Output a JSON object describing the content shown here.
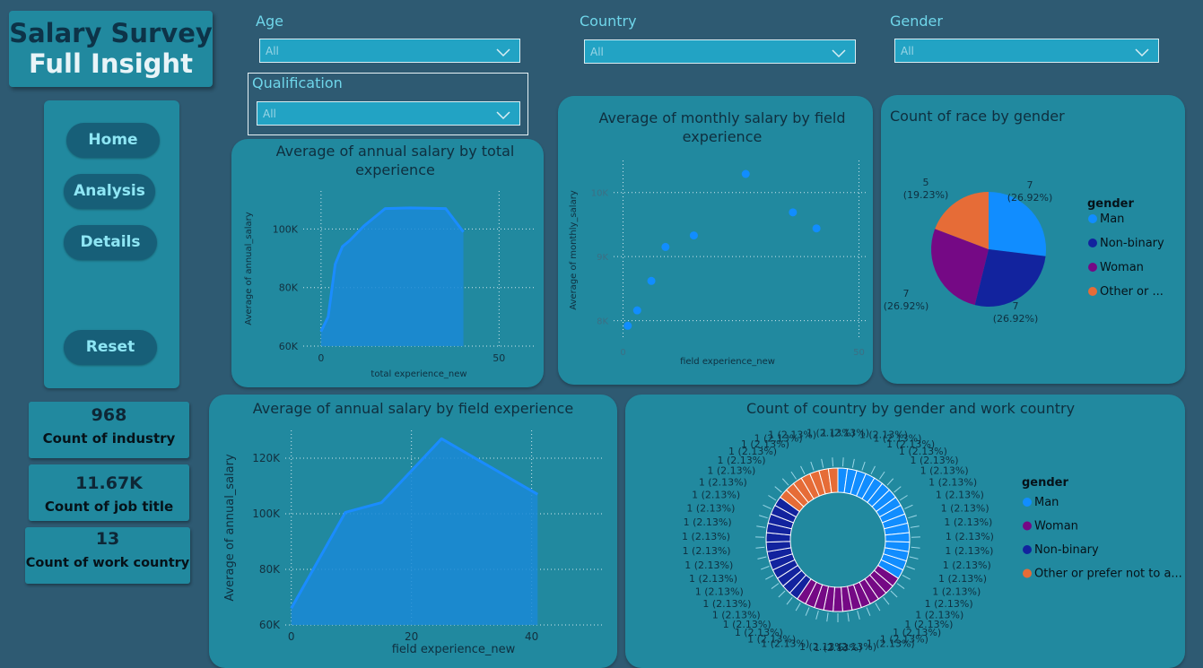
{
  "header": {
    "title_line1": "Salary Survey",
    "title_line2": "Full Insight"
  },
  "nav": {
    "home": "Home",
    "analysis": "Analysis",
    "details": "Details",
    "reset": "Reset"
  },
  "filters": {
    "age": {
      "label": "Age",
      "value": "All"
    },
    "country": {
      "label": "Country",
      "value": "All"
    },
    "gender": {
      "label": "Gender",
      "value": "All"
    },
    "qualification": {
      "label": "Qualification",
      "value": "All"
    }
  },
  "kpis": [
    {
      "value": "968",
      "label": "Count of industry"
    },
    {
      "value": "11.67K",
      "label": "Count of job title"
    },
    {
      "value": "13",
      "label": "Count of work country"
    }
  ],
  "colors": {
    "man": "#118dff",
    "non_binary": "#12239e",
    "woman": "#750985",
    "other": "#e66c37",
    "area": "#1a8ad6",
    "line": "#1a8cff",
    "card": "#21899f",
    "bg": "#2e5a72"
  },
  "chart_data": [
    {
      "id": "annual-by-total",
      "type": "area",
      "title": "Average of annual salary by total experience",
      "xlabel": "total experience_new",
      "ylabel": "Average of annual_salary",
      "x_ticks": [
        "0",
        "50"
      ],
      "y_ticks": [
        "60K",
        "80K",
        "100K"
      ],
      "xlim": [
        -5,
        60
      ],
      "ylim": [
        60000,
        113000
      ],
      "x": [
        0,
        2,
        4,
        6,
        8,
        12,
        18,
        25,
        35,
        40
      ],
      "y": [
        65000,
        70000,
        88000,
        94000,
        96000,
        101000,
        107000,
        107200,
        107000,
        99000
      ]
    },
    {
      "id": "monthly-by-field",
      "type": "scatter",
      "title": "Average of monthly salary by field experience",
      "xlabel": "field experience_new",
      "ylabel": "Average of monthly_salary",
      "x_ticks": [
        "0",
        "50"
      ],
      "y_ticks": [
        "8K",
        "9K",
        "10K"
      ],
      "xlim": [
        -2,
        52
      ],
      "ylim": [
        7700,
        10500
      ],
      "x": [
        1,
        3,
        6,
        9,
        15,
        26,
        36,
        41
      ],
      "y": [
        7920,
        8160,
        8620,
        9150,
        9330,
        10290,
        9690,
        9440
      ]
    },
    {
      "id": "race-by-gender",
      "type": "pie",
      "title": "Count of race by gender",
      "legend_title": "gender",
      "legend_position": "right",
      "slices": [
        {
          "name": "Man",
          "value": 7,
          "label": "7",
          "pct": "(26.92%)",
          "color": "#118dff"
        },
        {
          "name": "Non-binary",
          "value": 7,
          "label": "7",
          "pct": "(26.92%)",
          "color": "#12239e"
        },
        {
          "name": "Woman",
          "value": 7,
          "label": "7",
          "pct": "(26.92%)",
          "color": "#750985"
        },
        {
          "name": "Other or ...",
          "value": 5,
          "label": "5",
          "pct": "(19.23%)",
          "color": "#e66c37"
        }
      ]
    },
    {
      "id": "annual-by-field",
      "type": "area",
      "title": "Average of annual salary by field experience",
      "xlabel": "field experience_new",
      "ylabel": "Average of annual_salary",
      "x_ticks": [
        "0",
        "20",
        "40"
      ],
      "y_ticks": [
        "60K",
        "80K",
        "100K",
        "120K"
      ],
      "xlim": [
        -1,
        52
      ],
      "ylim": [
        60000,
        130000
      ],
      "x": [
        0,
        9,
        15,
        25,
        41
      ],
      "y": [
        66000,
        100500,
        104000,
        127000,
        107000
      ]
    },
    {
      "id": "country-by-gender",
      "type": "donut",
      "title": "Count of country by gender and work country",
      "legend_title": "gender",
      "legend_position": "right",
      "segment_label": "1 (2.13%)",
      "groups": [
        {
          "name": "Man",
          "count": 16,
          "color": "#118dff"
        },
        {
          "name": "Woman",
          "count": 12,
          "color": "#750985"
        },
        {
          "name": "Non-binary",
          "count": 12,
          "color": "#12239e"
        },
        {
          "name": "Other or prefer not to a...",
          "count": 7,
          "color": "#e66c37"
        }
      ]
    }
  ]
}
